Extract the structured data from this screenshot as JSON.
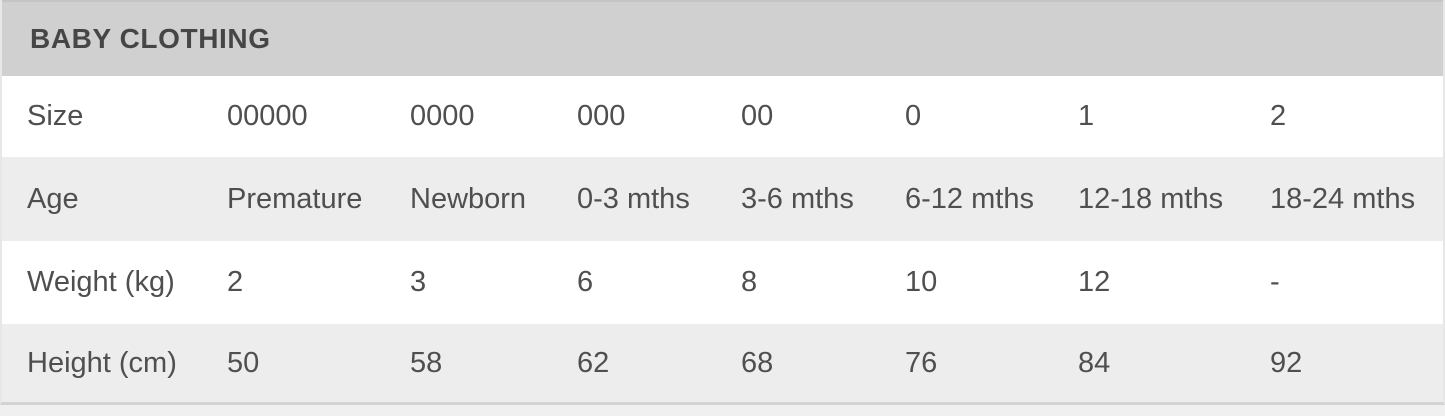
{
  "size_chart": {
    "title": "BABY CLOTHING",
    "rows": [
      {
        "label": "Size",
        "values": [
          "00000",
          "0000",
          "000",
          "00",
          "0",
          "1",
          "2"
        ]
      },
      {
        "label": "Age",
        "values": [
          "Premature",
          "Newborn",
          "0-3 mths",
          "3-6 mths",
          "6-12 mths",
          "12-18 mths",
          "18-24 mths"
        ]
      },
      {
        "label": "Weight (kg)",
        "values": [
          "2",
          "3",
          "6",
          "8",
          "10",
          "12",
          "-"
        ]
      },
      {
        "label": "Height (cm)",
        "values": [
          "50",
          "58",
          "62",
          "68",
          "76",
          "84",
          "92"
        ]
      }
    ]
  },
  "chart_data": {
    "type": "table",
    "title": "BABY CLOTHING",
    "row_headers": [
      "Size",
      "Age",
      "Weight (kg)",
      "Height (cm)"
    ],
    "rows": [
      [
        "00000",
        "0000",
        "000",
        "00",
        "0",
        "1",
        "2"
      ],
      [
        "Premature",
        "Newborn",
        "0-3 mths",
        "3-6 mths",
        "6-12 mths",
        "12-18 mths",
        "18-24 mths"
      ],
      [
        "2",
        "3",
        "6",
        "8",
        "10",
        "12",
        "-"
      ],
      [
        "50",
        "58",
        "62",
        "68",
        "76",
        "84",
        "92"
      ]
    ]
  },
  "colors": {
    "header_bg": "#d0d0d0",
    "header_text": "#464646",
    "alt_row_bg": "#ededed",
    "body_text": "#4f4f4f",
    "border": "#e7e7e7",
    "page_bg": "#f0f0f0"
  }
}
